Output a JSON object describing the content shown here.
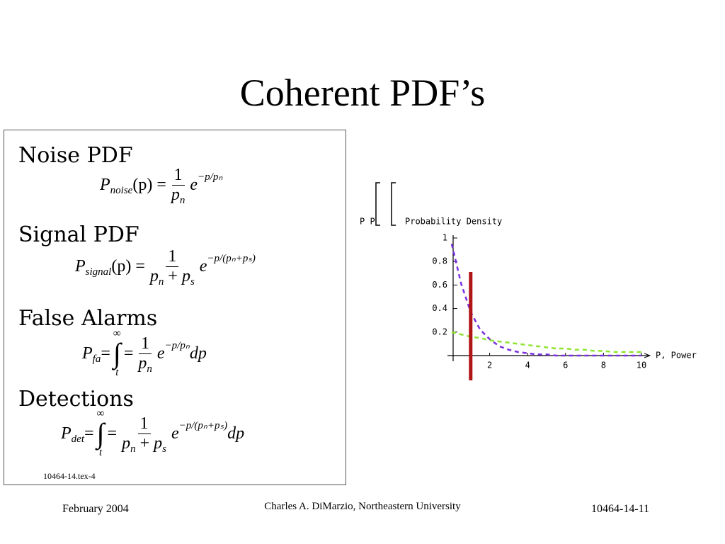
{
  "title": "Coherent PDF’s",
  "panel": {
    "sections": [
      {
        "heading": "Noise PDF",
        "equation": [
          {
            "i": "P"
          },
          {
            "sub": "noise"
          },
          {
            "t": "(p) ="
          },
          {
            "frac": [
              [
                {
                  "t": "1"
                }
              ],
              [
                {
                  "i": "p"
                },
                {
                  "sub": "n"
                }
              ]
            ]
          },
          {
            "i": "e"
          },
          {
            "sup": "−p/pₙ"
          }
        ]
      },
      {
        "heading": "Signal PDF",
        "equation": [
          {
            "i": "P"
          },
          {
            "sub": "signal"
          },
          {
            "t": "(p) ="
          },
          {
            "frac": [
              [
                {
                  "t": "1"
                }
              ],
              [
                {
                  "i": "p"
                },
                {
                  "sub": "n"
                },
                {
                  "t": " + "
                },
                {
                  "i": "p"
                },
                {
                  "sub": "s"
                }
              ]
            ]
          },
          {
            "i": "e"
          },
          {
            "sup": "−p/(pₙ+pₛ)"
          }
        ]
      },
      {
        "heading": "False Alarms",
        "equation": [
          {
            "i": "P"
          },
          {
            "sub": "fa"
          },
          {
            "t": "="
          },
          {
            "int": "∫",
            "hi": "∞",
            "lo": "t"
          },
          {
            "t": "="
          },
          {
            "frac": [
              [
                {
                  "t": "1"
                }
              ],
              [
                {
                  "i": "p"
                },
                {
                  "sub": "n"
                }
              ]
            ]
          },
          {
            "i": "e"
          },
          {
            "sup": "−p/pₙ"
          },
          {
            "i": "dp"
          }
        ]
      },
      {
        "heading": "Detections",
        "equation": [
          {
            "i": "P"
          },
          {
            "sub": "det"
          },
          {
            "t": "="
          },
          {
            "int": "∫",
            "hi": "∞",
            "lo": "t"
          },
          {
            "t": "="
          },
          {
            "frac": [
              [
                {
                  "t": "1"
                }
              ],
              [
                {
                  "i": "p"
                },
                {
                  "sub": "n"
                },
                {
                  "t": " + "
                },
                {
                  "i": "p"
                },
                {
                  "sub": "s"
                }
              ]
            ]
          },
          {
            "i": "e"
          },
          {
            "sup": "−p/(pₙ+pₛ)"
          },
          {
            "i": "dp"
          }
        ]
      }
    ],
    "footnote": "10464-14.tex-4"
  },
  "chart_data": {
    "type": "line",
    "y_label_prefix": "P  P",
    "y_label": "Probability   Density",
    "x_label": "P, Power",
    "x": [
      0,
      0.5,
      1,
      1.5,
      2,
      2.5,
      3,
      3.5,
      4,
      4.5,
      5,
      5.5,
      6,
      6.5,
      7,
      7.5,
      8,
      8.5,
      9,
      9.5,
      10
    ],
    "series": [
      {
        "color": "#7a30e0",
        "values": [
          0.95,
          0.61,
          0.37,
          0.22,
          0.14,
          0.08,
          0.05,
          0.03,
          0.02,
          0.01,
          0.01,
          0,
          0,
          0,
          0,
          0,
          0,
          0,
          0,
          0,
          0
        ]
      },
      {
        "color": "#8ee430",
        "values": [
          0.2,
          0.18,
          0.16,
          0.15,
          0.13,
          0.12,
          0.11,
          0.1,
          0.09,
          0.08,
          0.07,
          0.06,
          0.06,
          0.05,
          0.05,
          0.04,
          0.04,
          0.03,
          0.03,
          0.03,
          0.03
        ]
      }
    ],
    "threshold": 1,
    "threshold_color": "#b01515",
    "xlim": [
      0,
      10
    ],
    "ylim": [
      0,
      1
    ],
    "xticks": [
      2,
      4,
      6,
      8,
      10
    ],
    "yticks": [
      0.2,
      0.4,
      0.6,
      0.8,
      1
    ]
  },
  "footer": {
    "left": "February 2004",
    "center": "Charles A. DiMarzio, Northeastern University",
    "right": "10464-14-11"
  }
}
